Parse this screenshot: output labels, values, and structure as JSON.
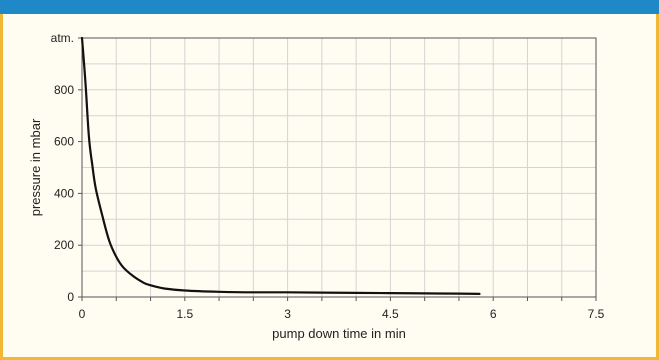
{
  "colors": {
    "header_bar": "#1f89c7",
    "frame_border": "#f2b733",
    "background": "#fffcf2",
    "grid": "#d4d4d4",
    "curve": "#111111"
  },
  "chart_data": {
    "type": "line",
    "xlabel": "pump down time in min",
    "ylabel": "pressure in mbar",
    "xlim": [
      0,
      7.5
    ],
    "ylim": [
      0,
      1000
    ],
    "x_ticks": [
      0,
      1.5,
      3,
      4.5,
      6,
      7.5
    ],
    "x_tick_labels": [
      "0",
      "1.5",
      "3",
      "4.5",
      "6",
      "7.5"
    ],
    "y_ticks": [
      0,
      200,
      400,
      600,
      800,
      1000
    ],
    "y_tick_labels": [
      "0",
      "200",
      "400",
      "600",
      "800",
      "atm."
    ],
    "grid": true,
    "series": [
      {
        "x": [
          0,
          0.05,
          0.1,
          0.15,
          0.2,
          0.3,
          0.4,
          0.5,
          0.6,
          0.75,
          0.9,
          1.0,
          1.2,
          1.5,
          2.0,
          2.5,
          3.0,
          3.5,
          4.0,
          4.5,
          5.0,
          5.5,
          5.8
        ],
        "y": [
          1000,
          830,
          620,
          510,
          420,
          310,
          215,
          155,
          115,
          80,
          55,
          45,
          33,
          25,
          20,
          18,
          18,
          17,
          16,
          15,
          14,
          13,
          12
        ]
      }
    ]
  }
}
